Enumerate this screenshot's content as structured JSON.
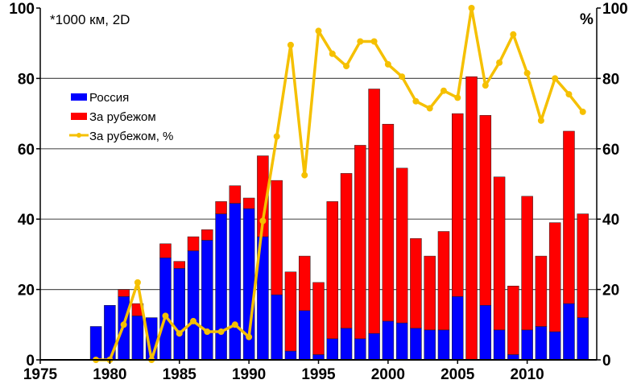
{
  "chart_data": {
    "type": "bar",
    "stacked": true,
    "annotation": "*1000 км, 2D",
    "right_axis_label": "%",
    "x": [
      1979,
      1980,
      1981,
      1982,
      1983,
      1984,
      1985,
      1986,
      1987,
      1988,
      1989,
      1990,
      1991,
      1992,
      1993,
      1994,
      1995,
      1996,
      1997,
      1998,
      1999,
      2000,
      2001,
      2002,
      2003,
      2004,
      2005,
      2006,
      2007,
      2008,
      2009,
      2010,
      2011,
      2012,
      2013,
      2014
    ],
    "series": [
      {
        "name": "Россия",
        "type": "bar",
        "axis": "left",
        "color": "#0000ff",
        "values": [
          9.5,
          15.5,
          18,
          12.5,
          12,
          29,
          26,
          31,
          34,
          41.5,
          44.5,
          43,
          35,
          18.5,
          2.5,
          14,
          1.5,
          6,
          9,
          6,
          7.5,
          11,
          10.5,
          9,
          8.5,
          8.5,
          18,
          0,
          15.5,
          8.5,
          1.5,
          8.5,
          9.5,
          8,
          16,
          12
        ]
      },
      {
        "name": "За рубежом",
        "type": "bar",
        "axis": "left",
        "color": "#ff0000",
        "values": [
          0,
          0,
          2,
          3.5,
          0,
          4,
          2,
          4,
          3,
          3.5,
          5,
          3,
          23,
          32.5,
          22.5,
          15.5,
          20.5,
          39,
          44,
          55,
          69.5,
          56,
          44,
          25.5,
          21,
          28,
          52,
          80.5,
          54,
          43.5,
          19.5,
          38,
          20,
          31,
          49,
          29.5
        ]
      },
      {
        "name": "За рубежом, %",
        "type": "line",
        "axis": "right",
        "color": "#f5c000",
        "values": [
          0,
          0,
          10,
          22,
          0,
          12.5,
          7.5,
          11,
          8,
          8,
          10,
          6.5,
          39.5,
          63.5,
          89.5,
          52.5,
          93.5,
          87,
          83.5,
          90.5,
          90.5,
          84,
          80.5,
          73.5,
          71.5,
          76.5,
          74.5,
          100,
          78,
          84.5,
          92.5,
          81.5,
          68,
          80,
          75.5,
          70.5
        ]
      }
    ],
    "xlim": [
      1975,
      2015
    ],
    "ylim": [
      0,
      100
    ],
    "y2lim": [
      0,
      100
    ],
    "x_ticks": [
      "1975",
      "1980",
      "1985",
      "1990",
      "1995",
      "2000",
      "2005",
      "2010"
    ],
    "y_ticks": [
      "0",
      "20",
      "40",
      "60",
      "80",
      "100"
    ],
    "y2_ticks": [
      "0",
      "20",
      "40",
      "60",
      "80",
      "100"
    ],
    "grid": "horizontal",
    "legend": "top-left"
  }
}
